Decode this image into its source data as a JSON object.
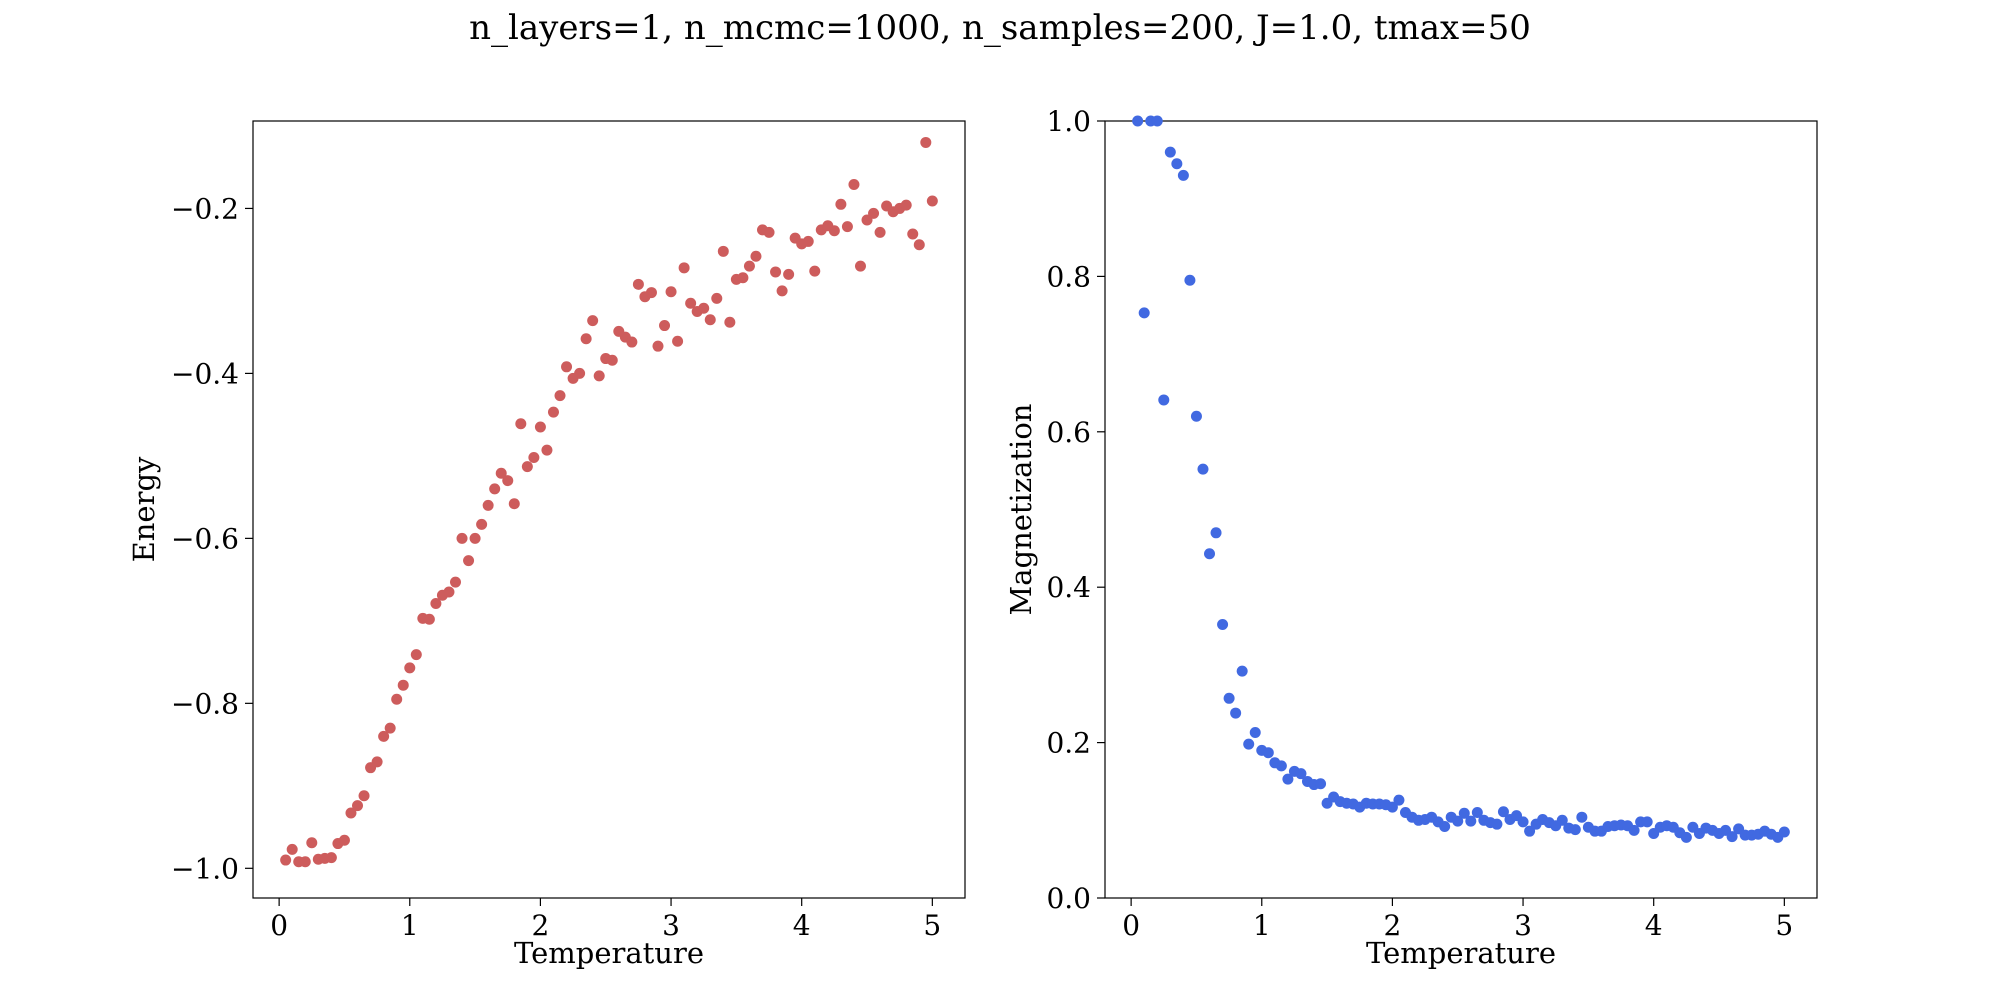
{
  "figure_title": "n_layers=1, n_mcmc=1000, n_samples=200, J=1.0, tmax=50",
  "chart_data": [
    {
      "type": "scatter",
      "xlabel": "Temperature",
      "ylabel": "Energy",
      "xlim": [
        -0.2,
        5.25
      ],
      "ylim": [
        -1.036,
        -0.094
      ],
      "xticks": [
        0,
        1,
        2,
        3,
        4,
        5
      ],
      "xtick_labels": [
        "0",
        "1",
        "2",
        "3",
        "4",
        "5"
      ],
      "yticks": [
        -1.0,
        -0.8,
        -0.6,
        -0.4,
        -0.2
      ],
      "ytick_labels": [
        "−1.0",
        "−0.8",
        "−0.6",
        "−0.4",
        "−0.2"
      ],
      "grid": false,
      "color": "#cd5c5c",
      "series": [
        {
          "x": [
            0.05,
            0.1,
            0.15,
            0.2,
            0.25,
            0.3,
            0.35,
            0.4,
            0.45,
            0.5,
            0.55,
            0.6,
            0.65,
            0.7,
            0.75,
            0.8,
            0.85,
            0.9,
            0.95,
            1.0,
            1.05,
            1.1,
            1.15,
            1.2,
            1.25,
            1.3,
            1.35,
            1.4,
            1.45,
            1.5,
            1.55,
            1.6,
            1.65,
            1.7,
            1.75,
            1.8,
            1.85,
            1.9,
            1.95,
            2.0,
            2.05,
            2.1,
            2.15,
            2.2,
            2.25,
            2.3,
            2.35,
            2.4,
            2.45,
            2.5,
            2.55,
            2.6,
            2.65,
            2.7,
            2.75,
            2.8,
            2.85,
            2.9,
            2.95,
            3.0,
            3.05,
            3.1,
            3.15,
            3.2,
            3.25,
            3.3,
            3.35,
            3.4,
            3.45,
            3.5,
            3.55,
            3.6,
            3.65,
            3.7,
            3.75,
            3.8,
            3.85,
            3.9,
            3.95,
            4.0,
            4.05,
            4.1,
            4.15,
            4.2,
            4.25,
            4.3,
            4.35,
            4.4,
            4.45,
            4.5,
            4.55,
            4.6,
            4.65,
            4.7,
            4.75,
            4.8,
            4.85,
            4.9,
            4.95,
            5.0
          ],
          "y": [
            -0.99,
            -0.977,
            -0.992,
            -0.992,
            -0.969,
            -0.989,
            -0.988,
            -0.987,
            -0.97,
            -0.966,
            -0.933,
            -0.924,
            -0.912,
            -0.878,
            -0.871,
            -0.84,
            -0.83,
            -0.795,
            -0.778,
            -0.757,
            -0.741,
            -0.697,
            -0.698,
            -0.679,
            -0.669,
            -0.665,
            -0.653,
            -0.6,
            -0.627,
            -0.6,
            -0.583,
            -0.56,
            -0.54,
            -0.521,
            -0.53,
            -0.558,
            -0.461,
            -0.513,
            -0.502,
            -0.465,
            -0.493,
            -0.447,
            -0.427,
            -0.392,
            -0.406,
            -0.4,
            -0.358,
            -0.336,
            -0.403,
            -0.382,
            -0.384,
            -0.349,
            -0.356,
            -0.362,
            -0.292,
            -0.307,
            -0.302,
            -0.367,
            -0.342,
            -0.301,
            -0.361,
            -0.272,
            -0.315,
            -0.325,
            -0.321,
            -0.335,
            -0.309,
            -0.252,
            -0.338,
            -0.286,
            -0.284,
            -0.27,
            -0.258,
            -0.226,
            -0.229,
            -0.277,
            -0.3,
            -0.28,
            -0.236,
            -0.243,
            -0.24,
            -0.276,
            -0.226,
            -0.221,
            -0.227,
            -0.195,
            -0.222,
            -0.171,
            -0.27,
            -0.214,
            -0.206,
            -0.229,
            -0.197,
            -0.204,
            -0.2,
            -0.196,
            -0.231,
            -0.244,
            -0.12,
            -0.191
          ]
        }
      ]
    },
    {
      "type": "scatter",
      "xlabel": "Temperature",
      "ylabel": "Magnetization",
      "xlim": [
        -0.2,
        5.25
      ],
      "ylim": [
        0.0,
        1.0
      ],
      "xticks": [
        0,
        1,
        2,
        3,
        4,
        5
      ],
      "xtick_labels": [
        "0",
        "1",
        "2",
        "3",
        "4",
        "5"
      ],
      "yticks": [
        0.0,
        0.2,
        0.4,
        0.6,
        0.8,
        1.0
      ],
      "ytick_labels": [
        "0.0",
        "0.2",
        "0.4",
        "0.6",
        "0.8",
        "1.0"
      ],
      "grid": false,
      "color": "#4169e1",
      "series": [
        {
          "x": [
            0.05,
            0.1,
            0.15,
            0.2,
            0.25,
            0.3,
            0.35,
            0.4,
            0.45,
            0.5,
            0.55,
            0.6,
            0.65,
            0.7,
            0.75,
            0.8,
            0.85,
            0.9,
            0.95,
            1.0,
            1.05,
            1.1,
            1.15,
            1.2,
            1.25,
            1.3,
            1.35,
            1.4,
            1.45,
            1.5,
            1.55,
            1.6,
            1.65,
            1.7,
            1.75,
            1.8,
            1.85,
            1.9,
            1.95,
            2.0,
            2.05,
            2.1,
            2.15,
            2.2,
            2.25,
            2.3,
            2.35,
            2.4,
            2.45,
            2.5,
            2.55,
            2.6,
            2.65,
            2.7,
            2.75,
            2.8,
            2.85,
            2.9,
            2.95,
            3.0,
            3.05,
            3.1,
            3.15,
            3.2,
            3.25,
            3.3,
            3.35,
            3.4,
            3.45,
            3.5,
            3.55,
            3.6,
            3.65,
            3.7,
            3.75,
            3.8,
            3.85,
            3.9,
            3.95,
            4.0,
            4.05,
            4.1,
            4.15,
            4.2,
            4.25,
            4.3,
            4.35,
            4.4,
            4.45,
            4.5,
            4.55,
            4.6,
            4.65,
            4.7,
            4.75,
            4.8,
            4.85,
            4.9,
            4.95,
            5.0
          ],
          "y": [
            1.0,
            0.753,
            1.0,
            1.0,
            0.641,
            0.96,
            0.945,
            0.93,
            0.795,
            0.62,
            0.552,
            0.443,
            0.47,
            0.352,
            0.257,
            0.238,
            0.292,
            0.198,
            0.213,
            0.19,
            0.187,
            0.174,
            0.17,
            0.153,
            0.163,
            0.16,
            0.15,
            0.146,
            0.147,
            0.122,
            0.13,
            0.124,
            0.122,
            0.121,
            0.117,
            0.122,
            0.121,
            0.121,
            0.12,
            0.117,
            0.126,
            0.11,
            0.104,
            0.1,
            0.101,
            0.104,
            0.098,
            0.092,
            0.104,
            0.099,
            0.109,
            0.099,
            0.11,
            0.1,
            0.097,
            0.095,
            0.111,
            0.101,
            0.106,
            0.098,
            0.086,
            0.095,
            0.101,
            0.097,
            0.093,
            0.1,
            0.09,
            0.088,
            0.104,
            0.091,
            0.086,
            0.086,
            0.092,
            0.093,
            0.094,
            0.093,
            0.087,
            0.098,
            0.098,
            0.083,
            0.091,
            0.093,
            0.091,
            0.084,
            0.078,
            0.091,
            0.083,
            0.09,
            0.087,
            0.083,
            0.087,
            0.079,
            0.089,
            0.081,
            0.081,
            0.082,
            0.086,
            0.082,
            0.078,
            0.085
          ]
        }
      ]
    }
  ]
}
